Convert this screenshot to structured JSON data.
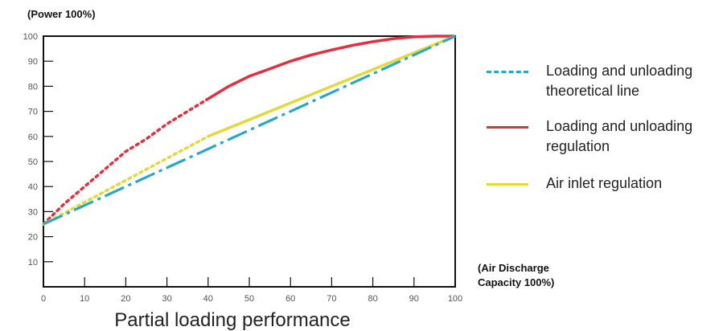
{
  "chart_data": {
    "type": "line",
    "ylabel": "(Power 100%)",
    "xlabel_line1": "(Air Discharge",
    "xlabel_line2": "Capacity 100%)",
    "caption": "Partial loading performance",
    "xlim": [
      0,
      100
    ],
    "ylim": [
      0,
      100
    ],
    "x_ticks": [
      "0",
      "10",
      "20",
      "30",
      "40",
      "50",
      "60",
      "70",
      "80",
      "90",
      "100"
    ],
    "y_ticks": [
      "10",
      "20",
      "30",
      "40",
      "50",
      "60",
      "70",
      "80",
      "90",
      "100"
    ],
    "series": [
      {
        "name": "Loading and unloading theoretical line",
        "color": "#27a7c9",
        "style": "dash-dot",
        "x": [
          0,
          100
        ],
        "y": [
          25,
          100
        ]
      },
      {
        "name": "Loading and unloading regulation",
        "color": "#e23040",
        "style": "dotted-then-solid",
        "solid_from_x": 40,
        "x": [
          0,
          5,
          10,
          15,
          20,
          25,
          30,
          35,
          40,
          45,
          50,
          55,
          60,
          65,
          70,
          75,
          80,
          85,
          90,
          95,
          100
        ],
        "y": [
          25,
          33,
          40,
          47,
          54,
          59,
          65,
          70,
          75,
          80,
          84,
          87,
          90,
          92.5,
          94.5,
          96.3,
          97.8,
          99,
          99.7,
          100,
          100
        ]
      },
      {
        "name": "Air inlet regulation",
        "color": "#e3d93a",
        "style": "dotted-then-solid",
        "solid_from_x": 40,
        "x": [
          0,
          40,
          100
        ],
        "y": [
          25,
          60,
          100
        ]
      }
    ]
  },
  "legend": [
    {
      "label": "Loading and unloading theoretical line",
      "color": "#27a7c9"
    },
    {
      "label": "Loading and unloading regulation",
      "color": "#e23040"
    },
    {
      "label": "Air inlet regulation",
      "color": "#e3d93a"
    }
  ]
}
